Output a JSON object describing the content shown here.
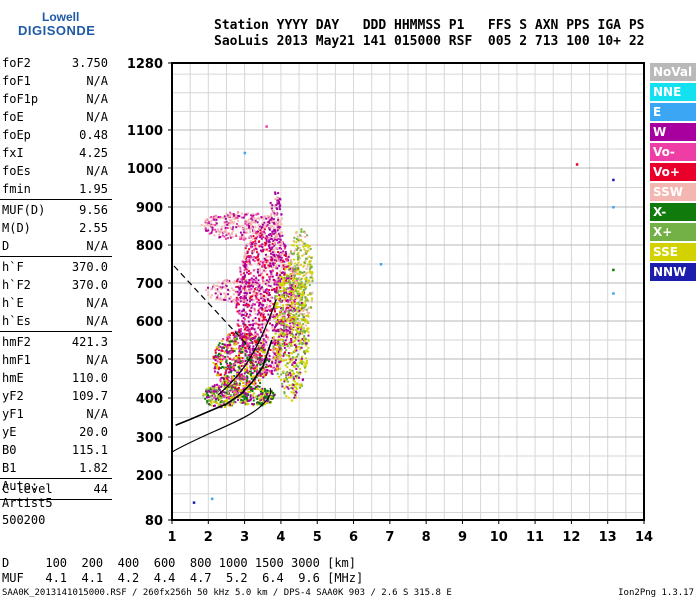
{
  "logo": {
    "line1": "Lowell",
    "line2": "DIGISONDE"
  },
  "header": {
    "line1": "Station YYYY DAY   DDD HHMMSS P1   FFS S AXN PPS IGA PS",
    "line2": "SaoLuis 2013 May21 141 015000 RSF  005 2 713 100 10+ 22"
  },
  "params": [
    {
      "k": "foF2",
      "v": "3.750"
    },
    {
      "k": "foF1",
      "v": "N/A"
    },
    {
      "k": "foF1p",
      "v": "N/A"
    },
    {
      "k": "foE",
      "v": "N/A"
    },
    {
      "k": "foEp",
      "v": "0.48"
    },
    {
      "k": "fxI",
      "v": "4.25"
    },
    {
      "k": "foEs",
      "v": "N/A"
    },
    {
      "k": "fmin",
      "v": "1.95"
    },
    {
      "sep": true
    },
    {
      "k": "MUF(D)",
      "v": "9.56"
    },
    {
      "k": "M(D)",
      "v": "2.55"
    },
    {
      "k": "D",
      "v": "N/A"
    },
    {
      "sep": true
    },
    {
      "k": "h`F",
      "v": "370.0"
    },
    {
      "k": "h`F2",
      "v": "370.0"
    },
    {
      "k": "h`E",
      "v": "N/A"
    },
    {
      "k": "h`Es",
      "v": "N/A"
    },
    {
      "sep": true
    },
    {
      "k": "hmF2",
      "v": "421.3"
    },
    {
      "k": "hmF1",
      "v": "N/A"
    },
    {
      "k": "hmE",
      "v": "110.0"
    },
    {
      "k": "yF2",
      "v": "109.7"
    },
    {
      "k": "yF1",
      "v": "N/A"
    },
    {
      "k": "yE",
      "v": "20.0"
    },
    {
      "k": "B0",
      "v": "115.1"
    },
    {
      "k": "B1",
      "v": "1.82"
    },
    {
      "sep": true
    },
    {
      "k": "C-level",
      "v": "44"
    },
    {
      "sep": true
    }
  ],
  "auto": {
    "line1": "Auto:",
    "line2": "Artist5",
    "line3": "500200"
  },
  "legend": [
    {
      "label": "NoVal",
      "color": "#b9b9b9"
    },
    {
      "label": "NNE",
      "color": "#14e1f0"
    },
    {
      "label": "E",
      "color": "#3aa6f4"
    },
    {
      "label": "W",
      "color": "#a7009f"
    },
    {
      "label": "Vo-",
      "color": "#ee3ea6"
    },
    {
      "label": "Vo+",
      "color": "#e8002b"
    },
    {
      "label": "SSW",
      "color": "#f3b6b1"
    },
    {
      "label": "X-",
      "color": "#117a0c"
    },
    {
      "label": "X+",
      "color": "#73b045"
    },
    {
      "label": "SSE",
      "color": "#d2d200"
    },
    {
      "label": "NNW",
      "color": "#1c1cad"
    }
  ],
  "chart_data": {
    "type": "scatter",
    "x_ticks": [
      "1",
      "2",
      "3",
      "4",
      "5",
      "6",
      "7",
      "8",
      "9",
      "10",
      "11",
      "12",
      "13",
      "14"
    ],
    "y_ticks": [
      "80",
      "200",
      "300",
      "400",
      "500",
      "600",
      "700",
      "800",
      "900",
      "1000",
      "1100",
      "1280"
    ],
    "xlim": [
      1,
      14
    ],
    "y_tick_values": [
      80,
      200,
      300,
      400,
      500,
      600,
      700,
      800,
      900,
      1000,
      1100,
      1280
    ],
    "grid": true,
    "trace_profile": {
      "freq_mhz": [
        1.1,
        1.5,
        2.0,
        2.5,
        2.9,
        3.2,
        3.5,
        3.75
      ],
      "height_km": [
        330,
        345,
        365,
        385,
        410,
        440,
        480,
        550
      ]
    },
    "stray_points": [
      {
        "f": 12.15,
        "h": 1010,
        "color": "#e8002b"
      },
      {
        "f": 13.15,
        "h": 970,
        "color": "#1c1cad"
      },
      {
        "f": 13.15,
        "h": 900,
        "color": "#3aa6f4"
      },
      {
        "f": 13.15,
        "h": 735,
        "color": "#117a0c"
      },
      {
        "f": 13.15,
        "h": 673,
        "color": "#3aa6f4"
      },
      {
        "f": 6.75,
        "h": 750,
        "color": "#3aa6f4"
      },
      {
        "f": 1.6,
        "h": 127,
        "color": "#1c1cad"
      },
      {
        "f": 2.1,
        "h": 137,
        "color": "#3aa6f4"
      },
      {
        "f": 3.6,
        "h": 1110,
        "color": "#ee3ea6"
      },
      {
        "f": 3.0,
        "h": 1040,
        "color": "#3aa6f4"
      }
    ]
  },
  "footer": {
    "line1": "D     100  200  400  600  800 1000 1500 3000 [km]",
    "line2": "MUF   4.1  4.1  4.2  4.4  4.7  5.2  6.4  9.6 [MHz]",
    "line3": "SAA0K_2013141015000.RSF / 260fx256h 50 kHz 5.0 km / DPS-4 SAA0K 903 / 2.6 S 315.8 E",
    "version": "Ion2Png 1.3.17"
  }
}
